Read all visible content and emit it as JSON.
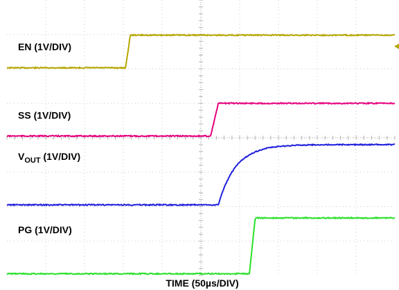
{
  "chart_data": {
    "type": "line",
    "xlabel": "TIME (50µs/DIV)",
    "x_divisions": 10,
    "y_divisions": 8,
    "grid": true,
    "series": [
      {
        "name": "EN (1V/DIV)",
        "label_main": "EN (1V/DIV)",
        "label_sub": "",
        "label_rest": "",
        "color": "#b5a600",
        "low_div": 6.03,
        "high_div": 6.98,
        "t_edge_div": 3.06,
        "rise_div": 0.12,
        "shape": "step"
      },
      {
        "name": "SS (1V/DIV)",
        "label_main": "SS (1V/DIV)",
        "label_sub": "",
        "label_rest": "",
        "color": "#e6007e",
        "low_div": 4.05,
        "high_div": 5.0,
        "t_edge_div": 5.25,
        "rise_div": 0.2,
        "shape": "step"
      },
      {
        "name": "VOUT (1V/DIV)",
        "label_main": "V",
        "label_sub": "OUT",
        "label_rest": " (1V/DIV)",
        "color": "#1f1fdc",
        "low_div": 2.05,
        "high_div": 3.8,
        "t_edge_div": 5.45,
        "tau_div": 0.45,
        "shape": "rc"
      },
      {
        "name": "PG (1V/DIV)",
        "label_main": "PG (1V/DIV)",
        "label_sub": "",
        "label_rest": "",
        "color": "#28e028",
        "low_div": 0.05,
        "high_div": 1.67,
        "t_edge_div": 6.25,
        "rise_div": 0.15,
        "shape": "step"
      }
    ]
  }
}
